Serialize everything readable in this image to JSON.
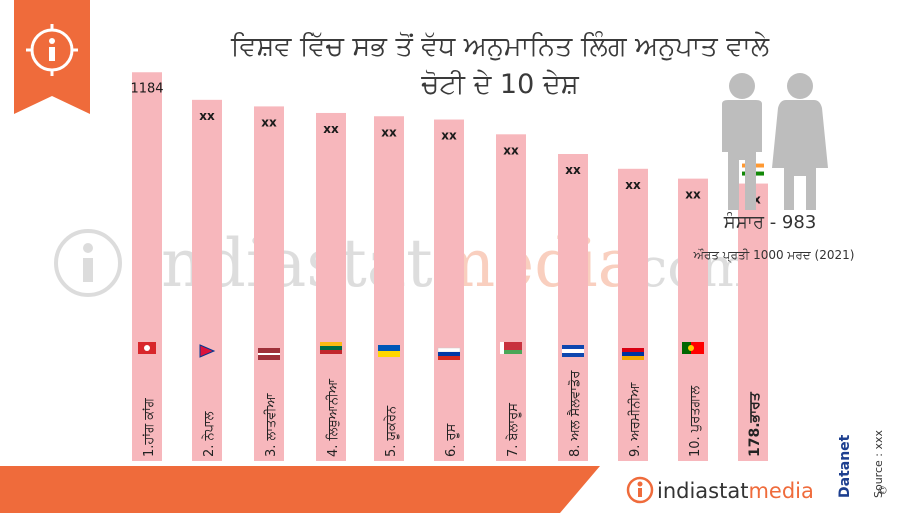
{
  "title": {
    "line1": "ਵਿਸ਼ਵ ਵਿੱਚ ਸਭ ਤੋਂ ਵੱਧ ਅਨੁਮਾਨਿਤ ਲਿੰਗ ਅਨੁਪਾਤ ਵਾਲੇ",
    "line2": "ਚੋਟੀ ਦੇ 10 ਦੇਸ਼"
  },
  "info_icon": "info-icon",
  "world": {
    "label": "ਸੰਸਾਰ - 983",
    "sub": "ਔਰਤ ਪ੍ਰਤੀ 1000 ਮਰਦ (2021)"
  },
  "watermark": {
    "left": "indiastat",
    "right": "media",
    "suffix": "com"
  },
  "footer": {
    "brand_left": "indiastat",
    "brand_right": "media",
    "datanet": "Datanet",
    "source": "Source : xxx",
    "copyright": "©"
  },
  "colors": {
    "bar": "#f7b7bc",
    "accent": "#ef6b3b",
    "dark": "#2b2b2b",
    "people": "#bdbdbd"
  },
  "chart_data": {
    "type": "bar",
    "title": "ਵਿਸ਼ਵ ਵਿੱਚ ਸਭ ਤੋਂ ਵੱਧ ਅਨੁਮਾਨਿਤ ਲਿੰਗ ਅਨੁਪਾਤ ਵਾਲੇ ਚੋਟੀ ਦੇ 10 ਦੇਸ਼",
    "ylim": [
      0,
      1200
    ],
    "grid": false,
    "legend": "none",
    "categories": [
      "1.ਹਾਂਗ ਕਾਂਗ",
      "2. ਨੇਪਾਲ",
      "3. ਲਾਤਵੀਆ",
      "4. ਲਿਥੁਆਨੀਆ",
      "5. ਯੂਕਰੇਨ",
      "6. ਰੂਸ",
      "7. ਬੇਲਾਰੂਸ",
      "8. ਅਲ ਸੈਲਵਾਡੋਰ",
      "9. ਅਰਮੀਨੀਆ",
      "10. ਪੁਰਤਗਾਲ",
      "178.ਭਾਰਤ"
    ],
    "value_labels": [
      "1184",
      "xx",
      "xx",
      "xx",
      "xx",
      "xx",
      "xx",
      "xx",
      "xx",
      "xx",
      "xx"
    ],
    "values": [
      1184,
      1100,
      1080,
      1060,
      1050,
      1040,
      995,
      935,
      890,
      860,
      845
    ],
    "flags": [
      "hong-kong-flag",
      "nepal-flag",
      "latvia-flag",
      "lithuania-flag",
      "ukraine-flag",
      "russia-flag",
      "belarus-flag",
      "el-salvador-flag",
      "armenia-flag",
      "portugal-flag",
      "india-flag"
    ]
  }
}
